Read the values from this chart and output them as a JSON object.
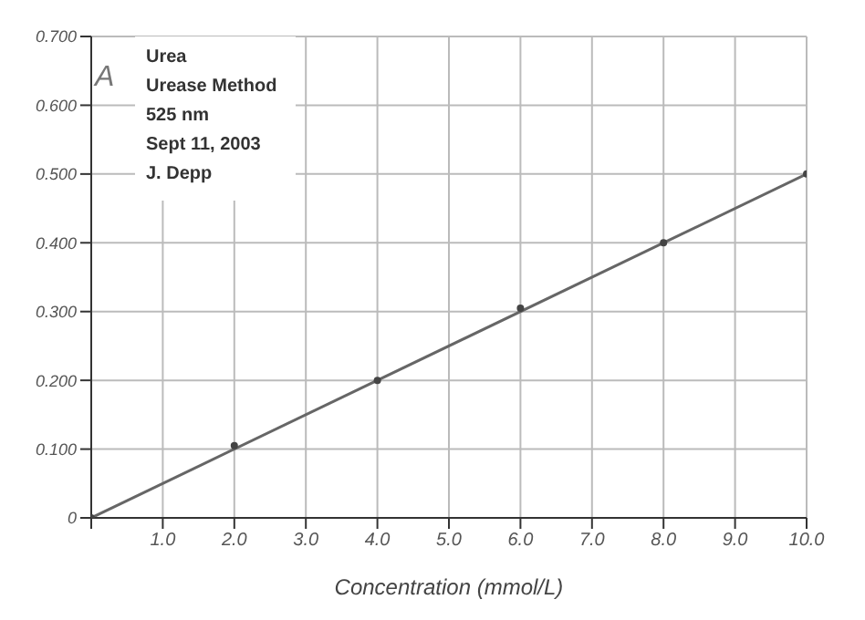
{
  "chart_data": {
    "type": "scatter",
    "title": "Urea",
    "xlabel": "Concentration (mmol/L)",
    "ylabel": "A",
    "annotations": [
      "Urease Method",
      "525 nm",
      "Sept 11, 2003",
      "J. Depp"
    ],
    "series": [
      {
        "color": "#444444",
        "x": [
          0,
          2,
          4,
          6,
          8,
          10
        ],
        "values": [
          0,
          0.105,
          0.2,
          0.305,
          0.4,
          0.5
        ],
        "marker": "circle"
      },
      {
        "type": "line",
        "color": "#666666",
        "x": [
          0,
          10
        ],
        "values": [
          0,
          0.5
        ],
        "marker": "none",
        "line_style": "solid"
      }
    ],
    "xlim": [
      0,
      10
    ],
    "xticks": [
      {
        "value": 0,
        "label": null
      },
      {
        "value": 1,
        "label": "1.0"
      },
      {
        "value": 2,
        "label": "2.0"
      },
      {
        "value": 3,
        "label": "3.0"
      },
      {
        "value": 4,
        "label": "4.0"
      },
      {
        "value": 5,
        "label": "5.0"
      },
      {
        "value": 6,
        "label": "6.0"
      },
      {
        "value": 7,
        "label": "7.0"
      },
      {
        "value": 8,
        "label": "8.0"
      },
      {
        "value": 9,
        "label": "9.0"
      },
      {
        "value": 10,
        "label": "10.0"
      }
    ],
    "ylim": [
      0,
      0.7
    ],
    "yticks": [
      0,
      {
        "value": 0.1,
        "label": "0.100"
      },
      {
        "value": 0.2,
        "label": "0.200"
      },
      {
        "value": 0.3,
        "label": "0.300"
      },
      {
        "value": 0.4,
        "label": "0.400"
      },
      {
        "value": 0.5,
        "label": "0.500"
      },
      {
        "value": 0.6,
        "label": "0.600"
      },
      {
        "value": 0.7,
        "label": "0.700"
      }
    ],
    "grid": true
  }
}
